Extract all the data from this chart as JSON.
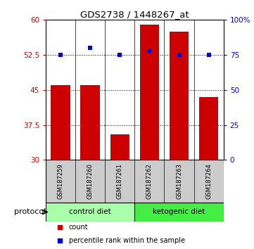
{
  "title": "GDS2738 / 1448267_at",
  "samples": [
    "GSM187259",
    "GSM187260",
    "GSM187261",
    "GSM187262",
    "GSM187263",
    "GSM187264"
  ],
  "bar_values": [
    46.0,
    46.0,
    35.5,
    59.0,
    57.5,
    43.5
  ],
  "dot_values": [
    75,
    80,
    75,
    78,
    75,
    75
  ],
  "bar_color": "#cc0000",
  "dot_color": "#0000cc",
  "ylim_left": [
    30,
    60
  ],
  "ylim_right": [
    0,
    100
  ],
  "yticks_left": [
    30,
    37.5,
    45,
    52.5,
    60
  ],
  "yticks_right": [
    0,
    25,
    50,
    75,
    100
  ],
  "ytick_labels_left": [
    "30",
    "37.5",
    "45",
    "52.5",
    "60"
  ],
  "ytick_labels_right": [
    "0",
    "25",
    "50",
    "75",
    "100%"
  ],
  "groups": [
    {
      "label": "control diet",
      "start": 0,
      "end": 3,
      "color": "#aaffaa"
    },
    {
      "label": "ketogenic diet",
      "start": 3,
      "end": 6,
      "color": "#44ee44"
    }
  ],
  "protocol_label": "protocol",
  "legend_items": [
    {
      "label": "count",
      "color": "#cc0000",
      "marker": "s"
    },
    {
      "label": "percentile rank within the sample",
      "color": "#0000cc",
      "marker": "s"
    }
  ],
  "bar_width": 0.65,
  "tick_label_color_left": "#cc0000",
  "tick_label_color_right": "#0000cc",
  "background_color": "#ffffff",
  "sample_box_color": "#cccccc",
  "grid_linestyle": ":",
  "grid_color": "#000000",
  "grid_linewidth": 0.7
}
